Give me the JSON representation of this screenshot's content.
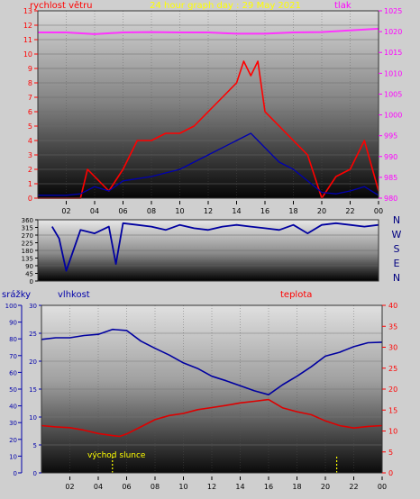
{
  "chart_data": [
    {
      "type": "line",
      "title": "24 hour graph day : 29 May 2021",
      "ylabel": "rychlost větru",
      "y2label": "tlak",
      "ylim": [
        0,
        13
      ],
      "y2lim": [
        980,
        1025
      ],
      "yticks": [
        0,
        1,
        2,
        3,
        4,
        5,
        6,
        7,
        8,
        9,
        10,
        11,
        12,
        13
      ],
      "y2ticks": [
        980,
        985,
        990,
        995,
        1000,
        1005,
        1010,
        1015,
        1020,
        1025
      ],
      "xlim": [
        0,
        24
      ],
      "xticks": [
        "02",
        "04",
        "06",
        "08",
        "10",
        "12",
        "14",
        "16",
        "18",
        "20",
        "22",
        "00"
      ],
      "series": [
        {
          "axis": "y2",
          "color": "#ff33ff",
          "x": [
            0,
            2,
            4,
            6,
            8,
            10,
            12,
            14,
            16,
            18,
            20,
            22,
            24
          ],
          "values": [
            1019.8,
            1019.8,
            1019.4,
            1019.8,
            1019.9,
            1019.8,
            1019.8,
            1019.5,
            1019.5,
            1019.8,
            1019.9,
            1020.3,
            1020.7
          ]
        },
        {
          "color": "#ff0000",
          "x": [
            0,
            1,
            2,
            3,
            3.5,
            4,
            5,
            6,
            7,
            8,
            9,
            10,
            11,
            12,
            13,
            14,
            14.5,
            15,
            15.5,
            16,
            17,
            18,
            19,
            20,
            21,
            22,
            23,
            24
          ],
          "values": [
            0,
            0,
            0,
            0,
            2,
            1.5,
            0.5,
            2,
            4,
            4,
            4.5,
            4.5,
            5,
            6,
            7,
            8,
            9.5,
            8.5,
            9.5,
            6,
            5,
            4,
            3,
            0,
            1.5,
            2,
            4,
            0.5
          ]
        },
        {
          "color": "#0000b0",
          "x": [
            0,
            2,
            3,
            4,
            5,
            6,
            8,
            10,
            12,
            14,
            15,
            16,
            17,
            18,
            19,
            20,
            21,
            22,
            23,
            24
          ],
          "values": [
            0.2,
            0.2,
            0.3,
            0.8,
            0.5,
            1.2,
            1.5,
            2,
            3,
            4,
            4.5,
            3.5,
            2.5,
            2,
            1.2,
            0.4,
            0.3,
            0.5,
            0.8,
            0.2
          ]
        }
      ]
    },
    {
      "type": "line",
      "ylim": [
        0,
        360
      ],
      "yticks": [
        0,
        45,
        90,
        135,
        180,
        225,
        270,
        315,
        360
      ],
      "dir_labels": [
        "N",
        "W",
        "S",
        "E",
        "N"
      ],
      "xlim": [
        0,
        24
      ],
      "series": [
        {
          "color": "#0000a0",
          "x": [
            1,
            1.5,
            2,
            3,
            4,
            5,
            5.5,
            6,
            7,
            8,
            9,
            10,
            11,
            12,
            13,
            14,
            15,
            16,
            17,
            18,
            19,
            20,
            21,
            22,
            23,
            24
          ],
          "values": [
            320,
            250,
            60,
            300,
            280,
            320,
            100,
            340,
            330,
            320,
            300,
            330,
            310,
            300,
            320,
            330,
            320,
            310,
            300,
            330,
            280,
            330,
            340,
            330,
            320,
            330
          ]
        }
      ]
    },
    {
      "type": "line",
      "labels": {
        "precip": "srážky",
        "humidity": "vlhkost",
        "temp": "teplota",
        "sunrise": "východ slunce"
      },
      "precip_ticks": [
        0,
        10,
        20,
        30,
        40,
        50,
        60,
        70,
        80,
        90,
        100
      ],
      "humidity_ticks": [
        0,
        5,
        10,
        15,
        20,
        25,
        30
      ],
      "temp_ticks": [
        0,
        5,
        10,
        15,
        20,
        25,
        30,
        35,
        40
      ],
      "humidity_range": [
        0,
        30
      ],
      "temp_range": [
        0,
        40
      ],
      "xlim": [
        0,
        24
      ],
      "xticks": [
        "02",
        "04",
        "06",
        "08",
        "10",
        "12",
        "14",
        "16",
        "18",
        "20",
        "22",
        "00"
      ],
      "series": [
        {
          "name": "vlhkost",
          "color": "#0000a0",
          "x": [
            0,
            1,
            2,
            3,
            4,
            5,
            6,
            7,
            8,
            9,
            10,
            11,
            12,
            13,
            14,
            15,
            16,
            17,
            18,
            19,
            20,
            21,
            22,
            23,
            24
          ],
          "values": [
            23.9,
            24.2,
            24.2,
            24.6,
            24.8,
            25.7,
            25.5,
            23.6,
            22.3,
            21.1,
            19.7,
            18.7,
            17.3,
            16.5,
            15.6,
            14.7,
            14,
            15.8,
            17.3,
            19,
            20.9,
            21.6,
            22.6,
            23.3,
            23.4
          ]
        },
        {
          "name": "teplota",
          "color": "#dd0000",
          "x": [
            0,
            1,
            2,
            3,
            4,
            5,
            5.5,
            6,
            7,
            8,
            9,
            10,
            11,
            12,
            13,
            14,
            15,
            16,
            17,
            18,
            19,
            20,
            21,
            22,
            23,
            24
          ],
          "values": [
            11.3,
            11,
            10.8,
            10.2,
            9.4,
            8.9,
            8.7,
            9.3,
            11,
            12.7,
            13.7,
            14.2,
            15.1,
            15.6,
            16.1,
            16.7,
            17.1,
            17.5,
            15.5,
            14.6,
            13.9,
            12.4,
            11.3,
            10.7,
            11.1,
            11.3
          ]
        }
      ],
      "sunrise_hour": 5,
      "sunset_hour": 20.8
    }
  ]
}
